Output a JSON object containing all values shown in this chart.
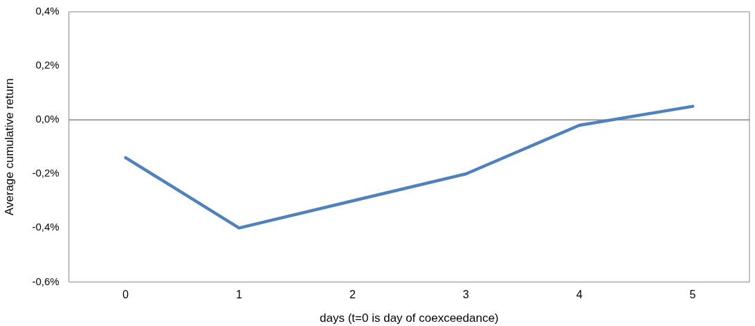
{
  "chart_data": {
    "type": "line",
    "xlabel": "days (t=0 is day of coexceedance)",
    "ylabel": "Average cumulative return",
    "categories": [
      "0",
      "1",
      "2",
      "3",
      "4",
      "5"
    ],
    "series": [
      {
        "color": "#4f81bd",
        "values": [
          -0.14,
          -0.4,
          -0.3,
          -0.2,
          -0.02,
          0.05
        ]
      }
    ],
    "ylim": [
      -0.6,
      0.4
    ],
    "yticks": [
      {
        "value": -0.6,
        "label": "-0,6%"
      },
      {
        "value": -0.4,
        "label": "-0,4%"
      },
      {
        "value": -0.2,
        "label": "-0,2%"
      },
      {
        "value": 0,
        "label": "0,0%"
      },
      {
        "value": 0.2,
        "label": "0,2%"
      },
      {
        "value": 0.4,
        "label": "0,4%"
      }
    ],
    "ref_lines": [
      {
        "axis": "y",
        "value": 0,
        "color": "#868686"
      }
    ],
    "grid": false,
    "legend": false,
    "marker": "none",
    "line_style": "solid"
  }
}
